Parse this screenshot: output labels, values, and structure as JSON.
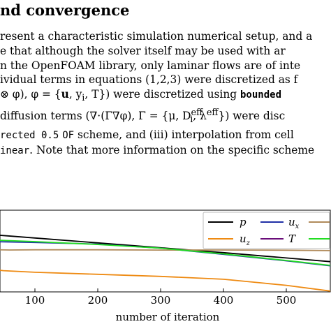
{
  "section": {
    "heading": "nd convergence"
  },
  "paragraph": {
    "line1": "resent a characteristic simulation numerical setup, and a",
    "line2": "e that although the solver itself may be used with ar",
    "line3": "n the OpenFOAM library, only laminar flows are of inte",
    "line4": "ividual terms in equations (1,2,3) were discretized as f",
    "line5_a": "⊗ φ), φ = {",
    "line5_b": "u",
    "line5_c": ", y",
    "line5_d": "i",
    "line5_e": ", T}) were discretized using ",
    "line5_code": "bounded",
    "line6_a": " diffusion terms (∇·(Γ∇φ), Γ = {μ, D",
    "line6_sup": "eff",
    "line6_sub": "i",
    "line6_b": ", λ",
    "line6_sup2": "eff",
    "line6_c": "}) were disc",
    "line7_code": "rected 0.5",
    "line7_code2": "OF",
    "line7_text": " scheme, and (iii) interpolation from cell",
    "line8_code": "inear",
    "line8_text": ". Note that more information on the specific scheme"
  },
  "chart_data": {
    "type": "line",
    "title": "",
    "xlabel": "number of iteration",
    "ylabel": "",
    "xlim": [
      0,
      570
    ],
    "ylim": [
      0,
      100
    ],
    "x_ticks": [
      100,
      200,
      300,
      400,
      500
    ],
    "grid": false,
    "legend_position": "top-right",
    "colors": {
      "p": "#000000",
      "u_x": "#1f2fa6",
      "u_y": "#b08a5a",
      "u_z": "#ee8a12",
      "T": "#6a0d7a",
      "Ti": "#22dd22"
    },
    "legend": [
      "p",
      "u_x",
      "u_z",
      "T"
    ],
    "series": [
      {
        "name": "p",
        "key": "p",
        "x": [
          0,
          100,
          200,
          300,
          400,
          500,
          570
        ],
        "values": [
          72,
          66,
          60,
          54,
          48,
          41.5,
          37
        ]
      },
      {
        "name": "u_x",
        "key": "u_x",
        "x": [
          0,
          100,
          200,
          300,
          400,
          500,
          570
        ],
        "values": [
          62,
          60.5,
          58.5,
          53.5,
          46,
          38,
          32
        ]
      },
      {
        "name": "",
        "key": "u_y",
        "x": [
          0,
          20,
          40,
          60,
          100,
          200,
          300,
          400,
          500,
          570
        ],
        "values": [
          54,
          52,
          51.5,
          51.3,
          51.5,
          51.5,
          51.2,
          51.3,
          51,
          50.5
        ]
      },
      {
        "name": "",
        "key": "Ti",
        "x": [
          0,
          50,
          100,
          200,
          300,
          400,
          500,
          570
        ],
        "values": [
          64,
          63,
          61.5,
          58,
          53.5,
          46.5,
          38.5,
          32.5
        ]
      },
      {
        "name": "u_z",
        "key": "u_z",
        "x": [
          0,
          50,
          100,
          200,
          300,
          400,
          500,
          570
        ],
        "values": [
          30,
          26,
          24,
          21.5,
          19,
          15.5,
          8,
          1
        ]
      }
    ],
    "legend_labels": {
      "p": "p",
      "u_x": "u",
      "u_x_sub": "x",
      "u_z": "u",
      "u_z_sub": "z",
      "T": "T"
    }
  }
}
